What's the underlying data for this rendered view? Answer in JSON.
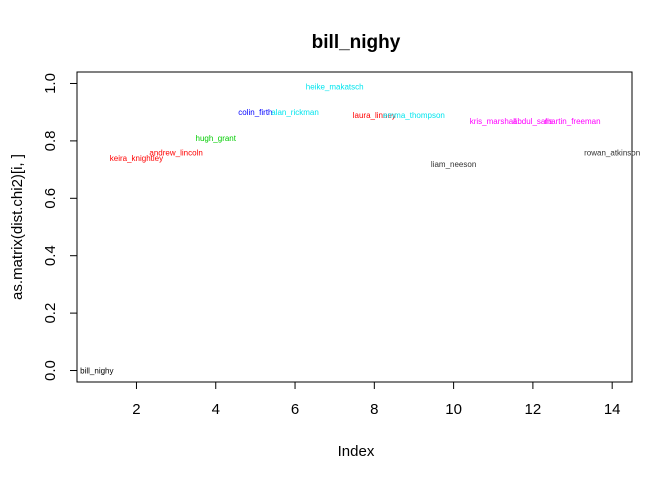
{
  "chart_data": {
    "type": "scatter",
    "title": "bill_nighy",
    "xlabel": "Index",
    "ylabel": "as.matrix(dist.chi2)[i, ]",
    "xlim": [
      0.5,
      14.5
    ],
    "ylim": [
      -0.04,
      1.04
    ],
    "x_ticks": [
      2,
      4,
      6,
      8,
      10,
      12,
      14
    ],
    "y_ticks": [
      0.0,
      0.2,
      0.4,
      0.6,
      0.8,
      1.0
    ],
    "x_tick_labels": [
      "2",
      "4",
      "6",
      "8",
      "10",
      "12",
      "14"
    ],
    "y_tick_labels": [
      "0.0",
      "0.2",
      "0.4",
      "0.6",
      "0.8",
      "1.0"
    ],
    "grid": false,
    "points": [
      {
        "label": "bill_nighy",
        "x": 1,
        "y": 0.0,
        "color": "#000000"
      },
      {
        "label": "keira_knightley",
        "x": 2,
        "y": 0.74,
        "color": "#ff0000"
      },
      {
        "label": "andrew_lincoln",
        "x": 3,
        "y": 0.76,
        "color": "#ff0000"
      },
      {
        "label": "hugh_grant",
        "x": 4,
        "y": 0.81,
        "color": "#00cd00"
      },
      {
        "label": "colin_firth",
        "x": 5,
        "y": 0.9,
        "color": "#0000ff"
      },
      {
        "label": "alan_rickman",
        "x": 6,
        "y": 0.9,
        "color": "#00e5ee"
      },
      {
        "label": "heike_makatsch",
        "x": 7,
        "y": 0.99,
        "color": "#00e5ee"
      },
      {
        "label": "laura_linney",
        "x": 8,
        "y": 0.89,
        "color": "#ff0000"
      },
      {
        "label": "emma_thompson",
        "x": 9,
        "y": 0.89,
        "color": "#00e5ee"
      },
      {
        "label": "liam_neeson",
        "x": 10,
        "y": 0.72,
        "color": "#333333"
      },
      {
        "label": "kris_marshall",
        "x": 11,
        "y": 0.87,
        "color": "#ff00ff"
      },
      {
        "label": "abdul_salis",
        "x": 12,
        "y": 0.87,
        "color": "#ff00ff"
      },
      {
        "label": "martin_freeman",
        "x": 13,
        "y": 0.87,
        "color": "#ff00ff"
      },
      {
        "label": "rowan_atkinson",
        "x": 14,
        "y": 0.76,
        "color": "#333333"
      }
    ]
  }
}
